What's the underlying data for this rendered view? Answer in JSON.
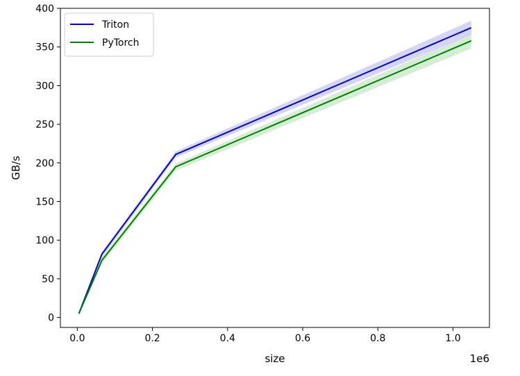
{
  "chart_data": {
    "type": "line",
    "title": "",
    "xlabel": "size",
    "ylabel": "GB/s",
    "x_offset_text": "1e6",
    "xlim": [
      -0.045,
      1.097
    ],
    "ylim": [
      -12.9,
      400.0
    ],
    "xticks": [
      0.0,
      0.2,
      0.4,
      0.6,
      0.8,
      1.0
    ],
    "xtick_labels": [
      "0.0",
      "0.2",
      "0.4",
      "0.6",
      "0.8",
      "1.0"
    ],
    "yticks": [
      0,
      50,
      100,
      150,
      200,
      250,
      300,
      350,
      400
    ],
    "ytick_labels": [
      "0",
      "50",
      "100",
      "150",
      "200",
      "250",
      "300",
      "350",
      "400"
    ],
    "grid": false,
    "legend_position": "top-left",
    "series": [
      {
        "name": "Triton",
        "color": "#0000cc",
        "band_color": "#8888ee",
        "x": [
          0.004096,
          0.065536,
          0.262144,
          1.048576
        ],
        "y": [
          5,
          82,
          211,
          375
        ],
        "y_low": [
          4,
          78,
          207,
          366
        ],
        "y_high": [
          6,
          85,
          215,
          384
        ]
      },
      {
        "name": "PyTorch",
        "color": "#008000",
        "band_color": "#88cc88",
        "x": [
          0.004096,
          0.065536,
          0.262144,
          1.048576
        ],
        "y": [
          5,
          74,
          195,
          358
        ],
        "y_low": [
          4,
          70,
          190,
          348
        ],
        "y_high": [
          6,
          78,
          199,
          367
        ]
      }
    ]
  }
}
